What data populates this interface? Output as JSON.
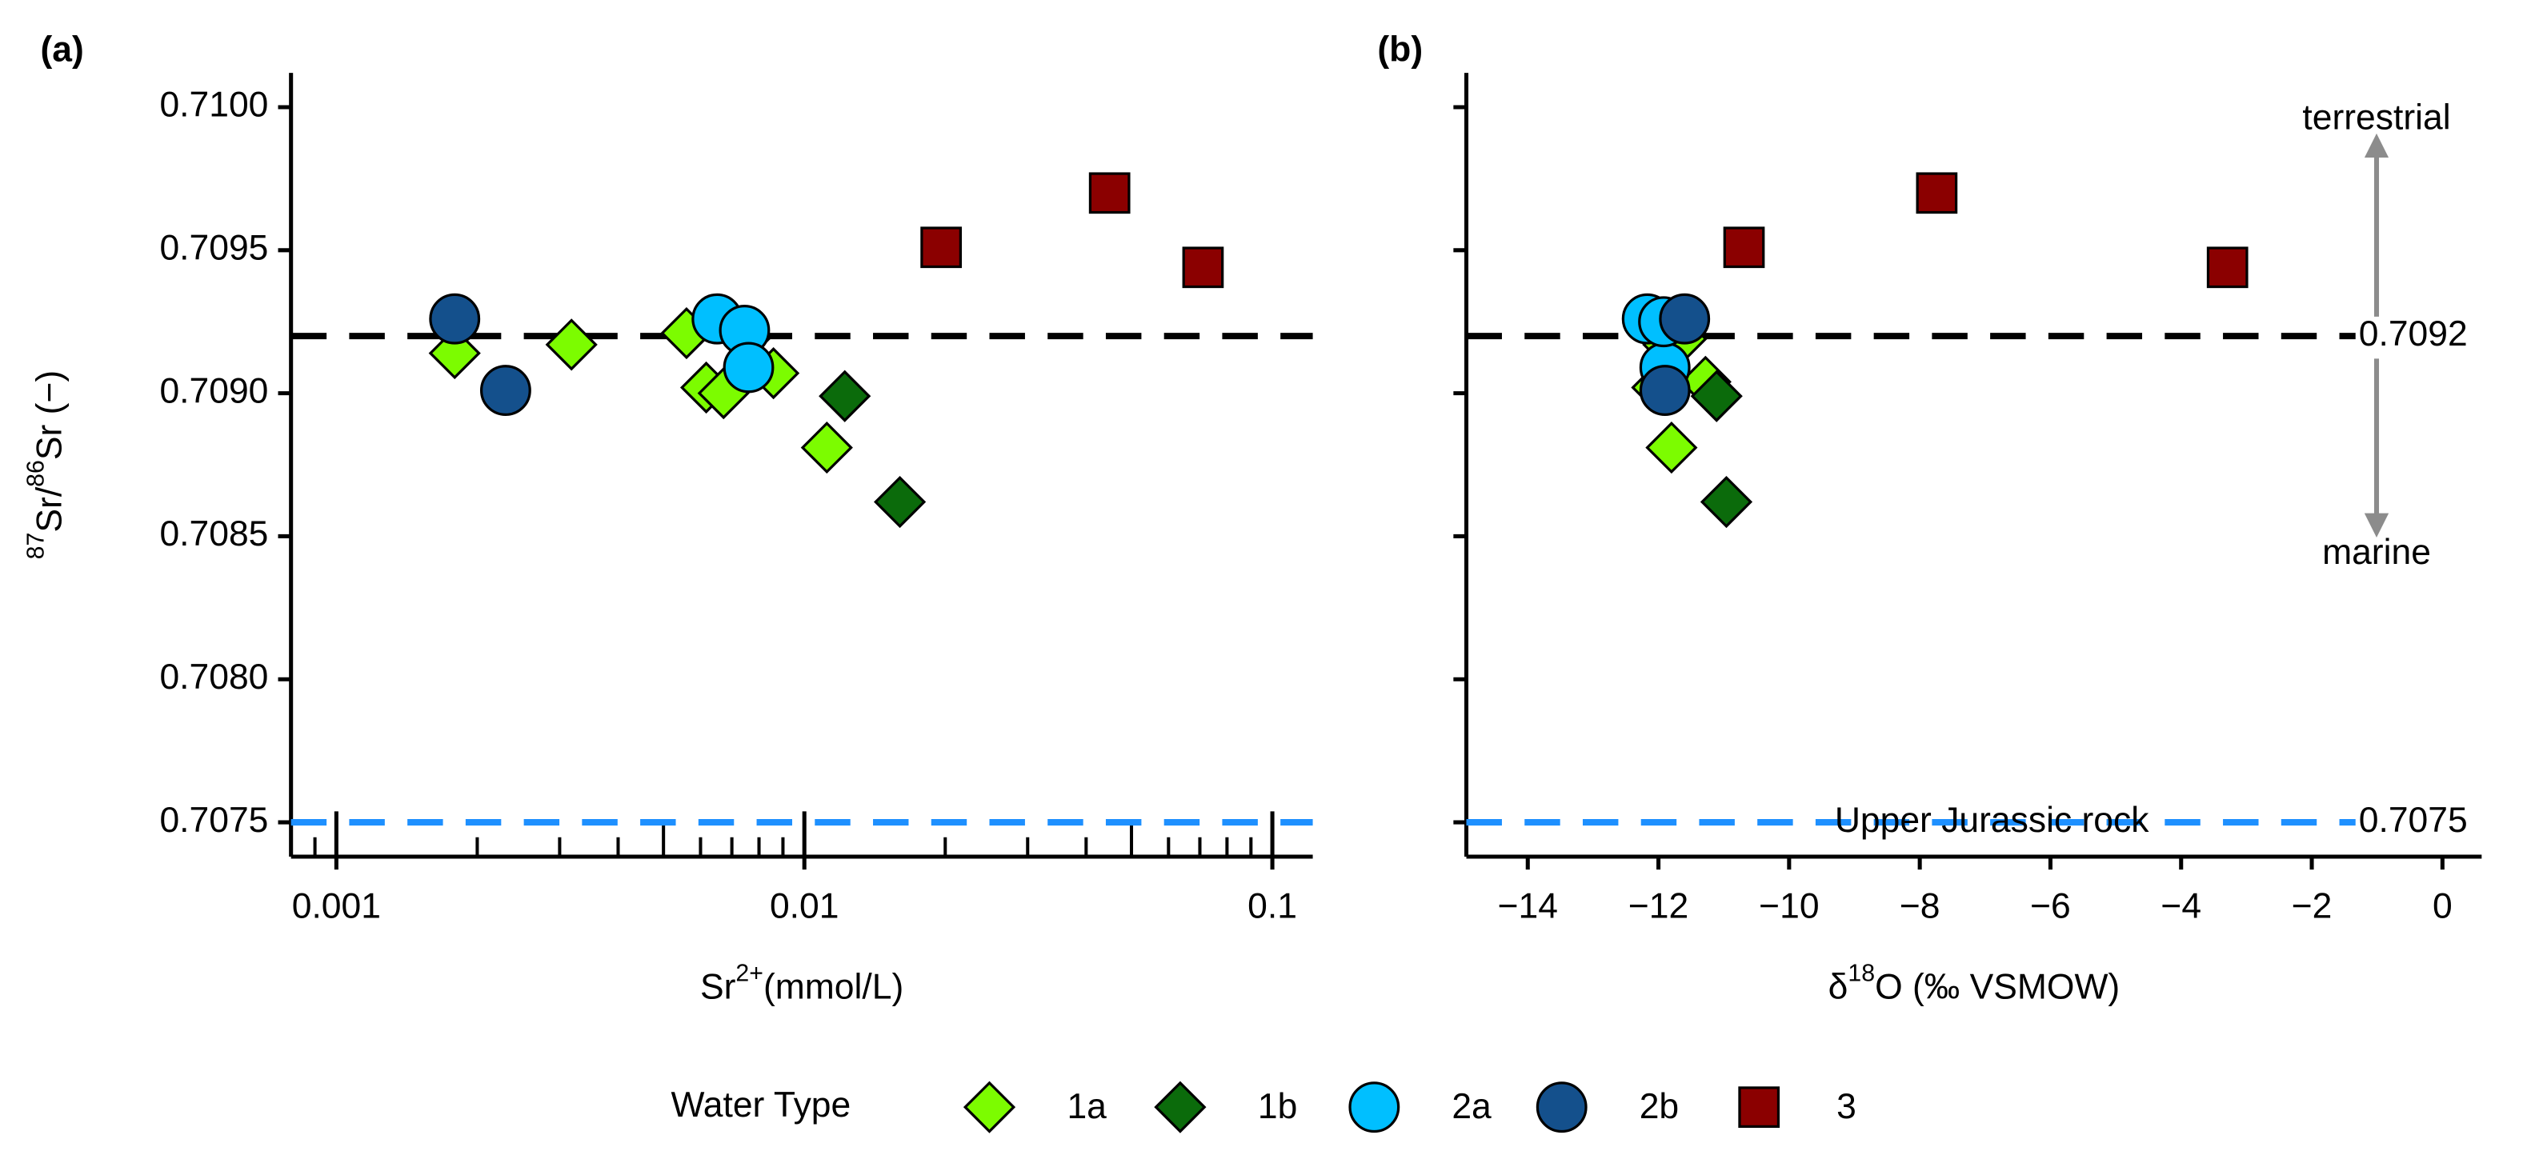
{
  "chart_data": [
    {
      "type": "scatter",
      "title": "(a)",
      "xlabel": [
        {
          "text": "Sr"
        },
        {
          "sup": "2+"
        },
        {
          "text": "(mmol/L)"
        }
      ],
      "ylabel": [
        {
          "sup": "87"
        },
        {
          "text": "Sr/"
        },
        {
          "sup": "86"
        },
        {
          "text": "Sr (−)"
        }
      ],
      "xlog": true,
      "xlim": [
        0.0008,
        0.122
      ],
      "xticks": [
        0.001,
        0.01,
        0.1
      ],
      "xminorticks": [
        0.0009,
        0.002,
        0.003,
        0.004,
        0.005,
        0.006,
        0.007,
        0.008,
        0.009,
        0.02,
        0.03,
        0.04,
        0.05,
        0.06,
        0.07,
        0.08,
        0.09
      ],
      "ylim": [
        0.70738,
        0.71012
      ],
      "yticks": [
        0.7075,
        {
          "value": 0.708,
          "label": "0.7080"
        },
        0.7085,
        {
          "value": 0.709,
          "label": "0.7090"
        },
        0.7095,
        {
          "value": 0.71,
          "label": "0.7100"
        }
      ],
      "hlines": [
        {
          "value": 0.7092,
          "color": "#000000"
        },
        {
          "value": 0.7075,
          "color": "#1e90ff"
        }
      ],
      "series": [
        {
          "name": "1a",
          "color": "#7cfc00",
          "shape": "diamond",
          "x": [
            0.00179,
            0.00318,
            0.0056,
            0.00617,
            0.00672,
            0.00745,
            0.00859,
            0.01117
          ],
          "values": [
            0.70914,
            0.70917,
            0.70921,
            0.70902,
            0.709,
            0.70919,
            0.70907,
            0.70881
          ]
        },
        {
          "name": "1b",
          "color": "#0b6b0b",
          "shape": "diamond",
          "x": [
            0.0122,
            0.016
          ],
          "values": [
            0.70899,
            0.70862
          ]
        },
        {
          "name": "2a",
          "color": "#00bfff",
          "shape": "circle",
          "x": [
            0.00651,
            0.00745,
            0.0076
          ],
          "values": [
            0.70926,
            0.70922,
            0.70909
          ]
        },
        {
          "name": "2b",
          "color": "#14508c",
          "shape": "circle",
          "x": [
            0.00179,
            0.0023
          ],
          "values": [
            0.70926,
            0.70901
          ]
        },
        {
          "name": "3",
          "color": "#8b0000",
          "shape": "square",
          "x": [
            0.0196,
            0.0449,
            0.0711
          ],
          "values": [
            0.70951,
            0.7097,
            0.70944
          ]
        }
      ],
      "legend": {
        "title": "Water Type",
        "position": "bottom"
      }
    },
    {
      "type": "scatter",
      "title": "(b)",
      "xlabel": [
        {
          "text": "δ"
        },
        {
          "sup": "18"
        },
        {
          "text": "O (‰ VSMOW)"
        }
      ],
      "xlim": [
        -14.94,
        0.6
      ],
      "xticks": [
        {
          "value": -14,
          "label": "−14"
        },
        {
          "value": -12,
          "label": "−12"
        },
        {
          "value": -10,
          "label": "−10"
        },
        {
          "value": -8,
          "label": "−8"
        },
        {
          "value": -6,
          "label": "−6"
        },
        {
          "value": -4,
          "label": "−4"
        },
        {
          "value": -2,
          "label": "−2"
        },
        0
      ],
      "ylim": [
        0.70738,
        0.71012
      ],
      "yticks": [
        0.7075,
        0.708,
        0.7085,
        0.709,
        0.7095,
        0.71
      ],
      "hlines": [
        {
          "value": 0.7092,
          "color": "#000000"
        },
        {
          "value": 0.7075,
          "name": "Upper Jurassic rock",
          "color": "#1e90ff"
        }
      ],
      "label_hlines": true,
      "annotations": [
        {
          "text": "terrestrial"
        },
        {
          "text": "marine"
        }
      ],
      "series": [
        {
          "name": "1a",
          "color": "#7cfc00",
          "shape": "diamond",
          "x": [
            -11.8,
            -11.85,
            -12.02,
            -11.65,
            -11.28
          ],
          "values": [
            0.70881,
            0.70917,
            0.70902,
            0.70919,
            0.70904
          ]
        },
        {
          "name": "1b",
          "color": "#0b6b0b",
          "shape": "diamond",
          "x": [
            -11.11,
            -10.96
          ],
          "values": [
            0.70899,
            0.70862
          ]
        },
        {
          "name": "2a",
          "color": "#00bfff",
          "shape": "circle",
          "x": [
            -12.17,
            -11.9,
            -11.92
          ],
          "values": [
            0.70926,
            0.70909,
            0.70925
          ]
        },
        {
          "name": "2b",
          "color": "#14508c",
          "shape": "circle",
          "x": [
            -11.6,
            -11.9
          ],
          "values": [
            0.70926,
            0.70901
          ]
        },
        {
          "name": "3",
          "color": "#8b0000",
          "shape": "square",
          "x": [
            -10.69,
            -7.74,
            -3.29
          ],
          "values": [
            0.70951,
            0.7097,
            0.70944
          ]
        }
      ]
    }
  ]
}
